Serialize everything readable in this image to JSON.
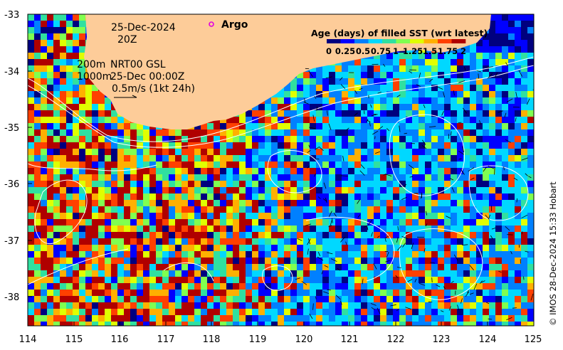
{
  "map": {
    "date_text": "25-Dec-2024",
    "time_text": "20Z",
    "argo_label": "Argo",
    "legend_title": "Age (days) of filled SST (wrt latest)",
    "legend_ticks": [
      "0",
      "0.25",
      "0.5",
      "0.75",
      "1",
      "1.25",
      "1.5",
      "1.75",
      "2"
    ],
    "legend_colors": [
      "#00007f",
      "#0000ff",
      "#0080ff",
      "#00d8ff",
      "#30e0a0",
      "#80ff50",
      "#e0ff00",
      "#ffb000",
      "#ff4000",
      "#b00000"
    ],
    "contour_line1_depth": "200m",
    "contour_line1_source": "NRT00 GSL",
    "contour_line2_depth": "1000m",
    "contour_line2_time": "25-Dec 00:00Z",
    "vector_scale": "0.5m/s (1kt 24h)",
    "credit": "© IMOS 28-Dec-2024 15:33 Hobart",
    "land_color": "#fdcc99",
    "y_ticks": [
      "-33",
      "-34",
      "-35",
      "-36",
      "-37",
      "-38"
    ],
    "x_ticks": [
      "114",
      "115",
      "116",
      "117",
      "118",
      "119",
      "120",
      "121",
      "122",
      "123",
      "124",
      "125"
    ]
  }
}
